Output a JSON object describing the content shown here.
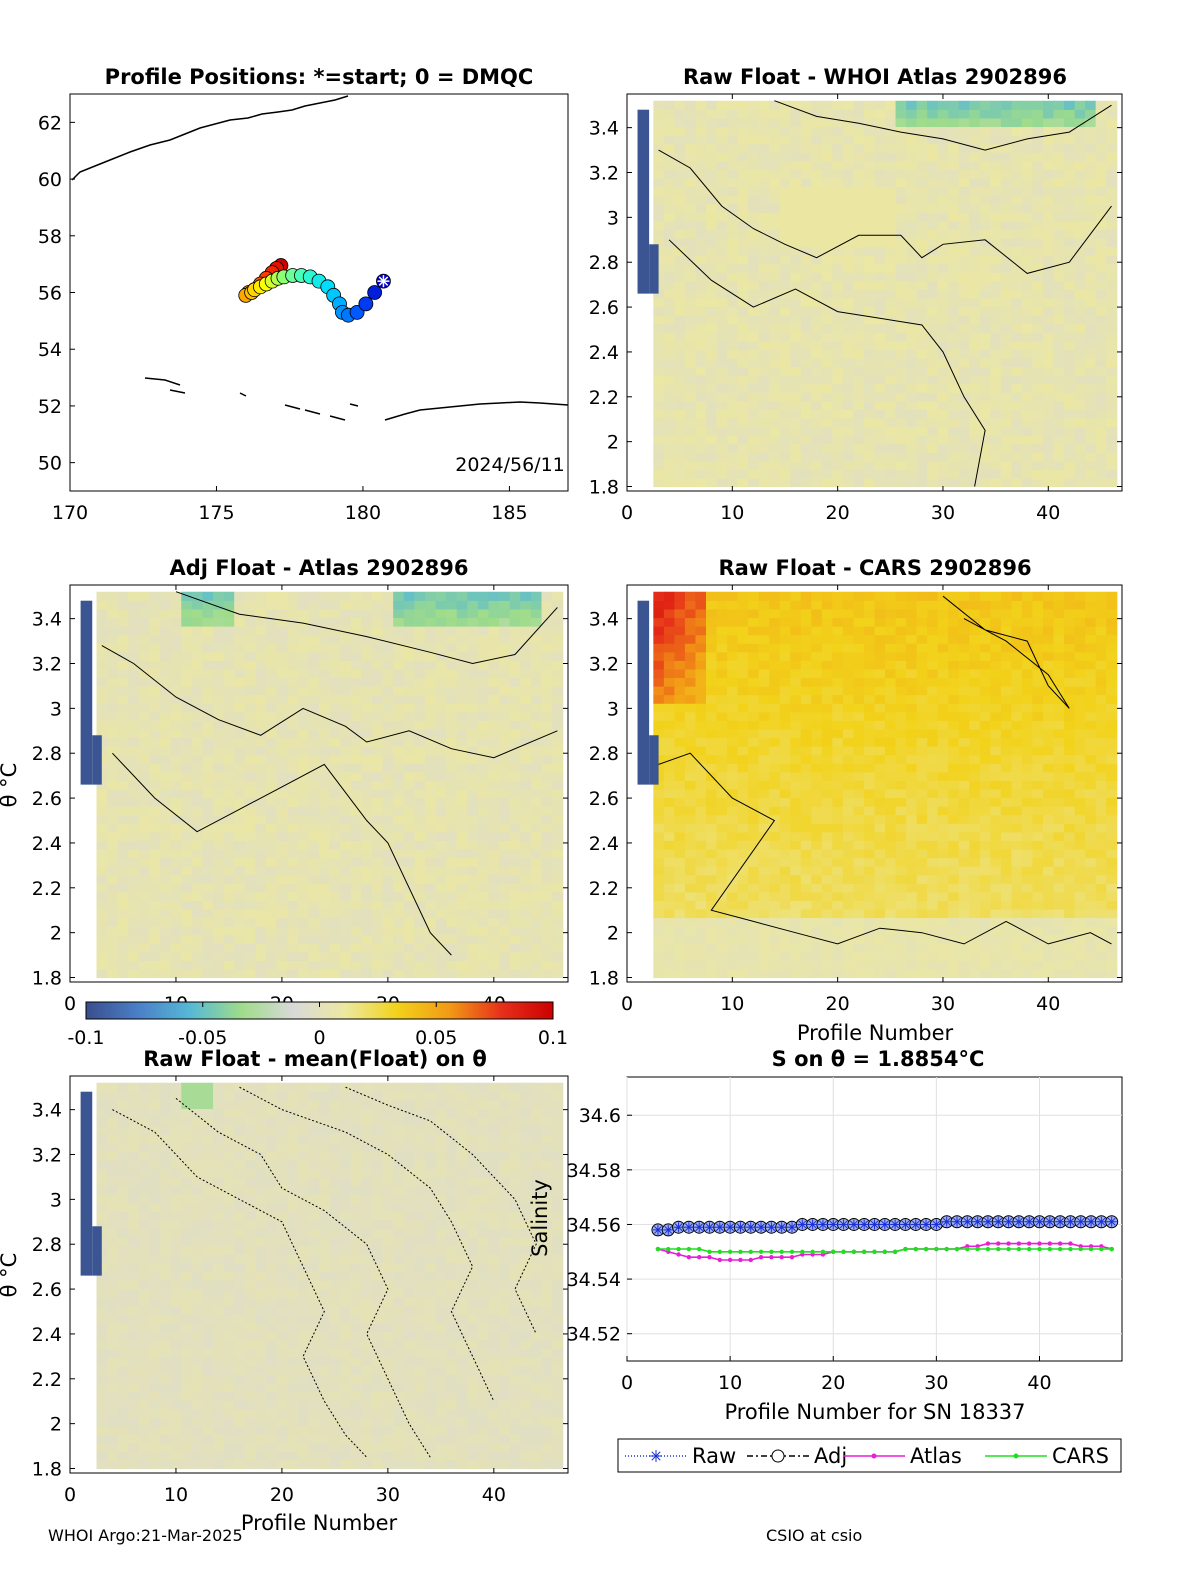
{
  "panels": {
    "map": {
      "title": "Profile Positions: *=start; 0 = DMQC",
      "date_label": "2024/56/11",
      "xticks": [
        "170",
        "175",
        "180",
        "185"
      ],
      "yticks": [
        "50",
        "52",
        "54",
        "56",
        "58",
        "60",
        "62"
      ]
    },
    "whoi": {
      "title": "Raw Float - WHOI Atlas  2902896"
    },
    "adj": {
      "title": "Adj Float - Atlas  2902896"
    },
    "cars": {
      "title": "Raw Float - CARS  2902896"
    },
    "mean": {
      "title": "Raw Float - mean(Float) on θ"
    },
    "sal": {
      "title": "S on θ = 1.8854°C"
    }
  },
  "axes": {
    "theta_ticks": [
      "1.8",
      "2",
      "2.2",
      "2.4",
      "2.6",
      "2.8",
      "3",
      "3.2",
      "3.4"
    ],
    "profile_ticks": [
      "0",
      "10",
      "20",
      "30",
      "40"
    ],
    "theta_label": "θ °C",
    "profile_label": "Profile Number",
    "profile_label_sn": "Profile Number for SN 18337",
    "salinity_label": "Salinity"
  },
  "colorbar": {
    "ticks": [
      "-0.1",
      "-0.05",
      "0",
      "0.05",
      "0.1"
    ],
    "stops": [
      "#3a4e8c",
      "#4a7fc8",
      "#56b8d6",
      "#9fdc8a",
      "#d9d9d9",
      "#ece8a0",
      "#f2d21a",
      "#f29a16",
      "#e6301a",
      "#cc0000"
    ]
  },
  "legend": {
    "entries": [
      {
        "label": "Raw",
        "color": "#1c2fd6"
      },
      {
        "label": "Adj",
        "color": "#000000"
      },
      {
        "label": "Atlas",
        "color": "#e81ed8"
      },
      {
        "label": "CARS",
        "color": "#22dd22"
      }
    ]
  },
  "footer": {
    "left": "WHOI Argo:21-Mar-2025",
    "right": "CSIO at csio"
  },
  "chart_data": [
    {
      "type": "scatter",
      "title": "Profile Positions: *=start; 0 = DMQC",
      "xlim": [
        170,
        187
      ],
      "ylim": [
        49,
        63
      ],
      "x": [
        180.7,
        180.4,
        180.1,
        179.8,
        179.5,
        179.3,
        179.2,
        179.0,
        178.8,
        178.5,
        178.2,
        177.9,
        177.6,
        177.3,
        177.1,
        176.9,
        176.7,
        176.5,
        176.3,
        176.2,
        176.0,
        176.1,
        176.3,
        176.5,
        176.7,
        176.9,
        177.05,
        177.2
      ],
      "y": [
        56.4,
        56.0,
        55.6,
        55.3,
        55.2,
        55.3,
        55.6,
        55.9,
        56.2,
        56.4,
        56.55,
        56.6,
        56.6,
        56.55,
        56.5,
        56.4,
        56.3,
        56.2,
        56.1,
        56.0,
        55.9,
        56.0,
        56.1,
        56.3,
        56.5,
        56.7,
        56.85,
        56.95
      ]
    },
    {
      "type": "heatmap",
      "title": "Raw Float - WHOI Atlas  2902896",
      "xlim": [
        0,
        47
      ],
      "ylim": [
        1.78,
        3.55
      ],
      "clim": [
        -0.1,
        0.1
      ]
    },
    {
      "type": "heatmap",
      "title": "Adj Float - Atlas  2902896",
      "xlim": [
        0,
        47
      ],
      "ylim": [
        1.78,
        3.55
      ],
      "clim": [
        -0.1,
        0.1
      ]
    },
    {
      "type": "heatmap",
      "title": "Raw Float - CARS  2902896",
      "xlim": [
        0,
        47
      ],
      "ylim": [
        1.78,
        3.55
      ],
      "clim": [
        -0.1,
        0.1
      ]
    },
    {
      "type": "heatmap",
      "title": "Raw Float - mean(Float) on θ",
      "xlim": [
        0,
        47
      ],
      "ylim": [
        1.78,
        3.55
      ],
      "clim": [
        -0.1,
        0.1
      ]
    },
    {
      "type": "line",
      "title": "S on θ = 1.8854°C",
      "xlabel": "Profile Number for SN 18337",
      "ylabel": "Salinity",
      "xlim": [
        0,
        48
      ],
      "ylim": [
        34.51,
        34.614
      ],
      "grid": true,
      "legend": "bottom",
      "x": [
        3,
        4,
        5,
        6,
        7,
        8,
        9,
        10,
        11,
        12,
        13,
        14,
        15,
        16,
        17,
        18,
        19,
        20,
        21,
        22,
        23,
        24,
        25,
        26,
        27,
        28,
        29,
        30,
        31,
        32,
        33,
        34,
        35,
        36,
        37,
        38,
        39,
        40,
        41,
        42,
        43,
        44,
        45,
        46,
        47
      ],
      "series": [
        {
          "name": "Raw",
          "values": [
            34.558,
            34.558,
            34.559,
            34.559,
            34.559,
            34.559,
            34.559,
            34.559,
            34.559,
            34.559,
            34.559,
            34.559,
            34.559,
            34.559,
            34.56,
            34.56,
            34.56,
            34.56,
            34.56,
            34.56,
            34.56,
            34.56,
            34.56,
            34.56,
            34.56,
            34.56,
            34.56,
            34.56,
            34.561,
            34.561,
            34.561,
            34.561,
            34.561,
            34.561,
            34.561,
            34.561,
            34.561,
            34.561,
            34.561,
            34.561,
            34.561,
            34.561,
            34.561,
            34.561,
            34.561
          ]
        },
        {
          "name": "Adj",
          "values": [
            34.558,
            34.558,
            34.559,
            34.559,
            34.559,
            34.559,
            34.559,
            34.559,
            34.559,
            34.559,
            34.559,
            34.559,
            34.559,
            34.559,
            34.56,
            34.56,
            34.56,
            34.56,
            34.56,
            34.56,
            34.56,
            34.56,
            34.56,
            34.56,
            34.56,
            34.56,
            34.56,
            34.56,
            34.561,
            34.561,
            34.561,
            34.561,
            34.561,
            34.561,
            34.561,
            34.561,
            34.561,
            34.561,
            34.561,
            34.561,
            34.561,
            34.561,
            34.561,
            34.561,
            34.561
          ]
        },
        {
          "name": "Atlas",
          "values": [
            34.551,
            34.55,
            34.549,
            34.548,
            34.548,
            34.548,
            34.547,
            34.547,
            34.547,
            34.547,
            34.548,
            34.548,
            34.548,
            34.548,
            34.549,
            34.549,
            34.549,
            34.55,
            34.55,
            34.55,
            34.55,
            34.55,
            34.55,
            34.55,
            34.551,
            34.551,
            34.551,
            34.551,
            34.551,
            34.551,
            34.552,
            34.552,
            34.553,
            34.553,
            34.553,
            34.553,
            34.553,
            34.553,
            34.553,
            34.553,
            34.553,
            34.552,
            34.552,
            34.552,
            34.551
          ]
        },
        {
          "name": "CARS",
          "values": [
            34.551,
            34.551,
            34.551,
            34.551,
            34.551,
            34.55,
            34.55,
            34.55,
            34.55,
            34.55,
            34.55,
            34.55,
            34.55,
            34.55,
            34.55,
            34.55,
            34.55,
            34.55,
            34.55,
            34.55,
            34.55,
            34.55,
            34.55,
            34.55,
            34.551,
            34.551,
            34.551,
            34.551,
            34.551,
            34.551,
            34.551,
            34.551,
            34.551,
            34.551,
            34.551,
            34.551,
            34.551,
            34.551,
            34.551,
            34.551,
            34.551,
            34.551,
            34.551,
            34.551,
            34.551
          ]
        }
      ]
    }
  ]
}
